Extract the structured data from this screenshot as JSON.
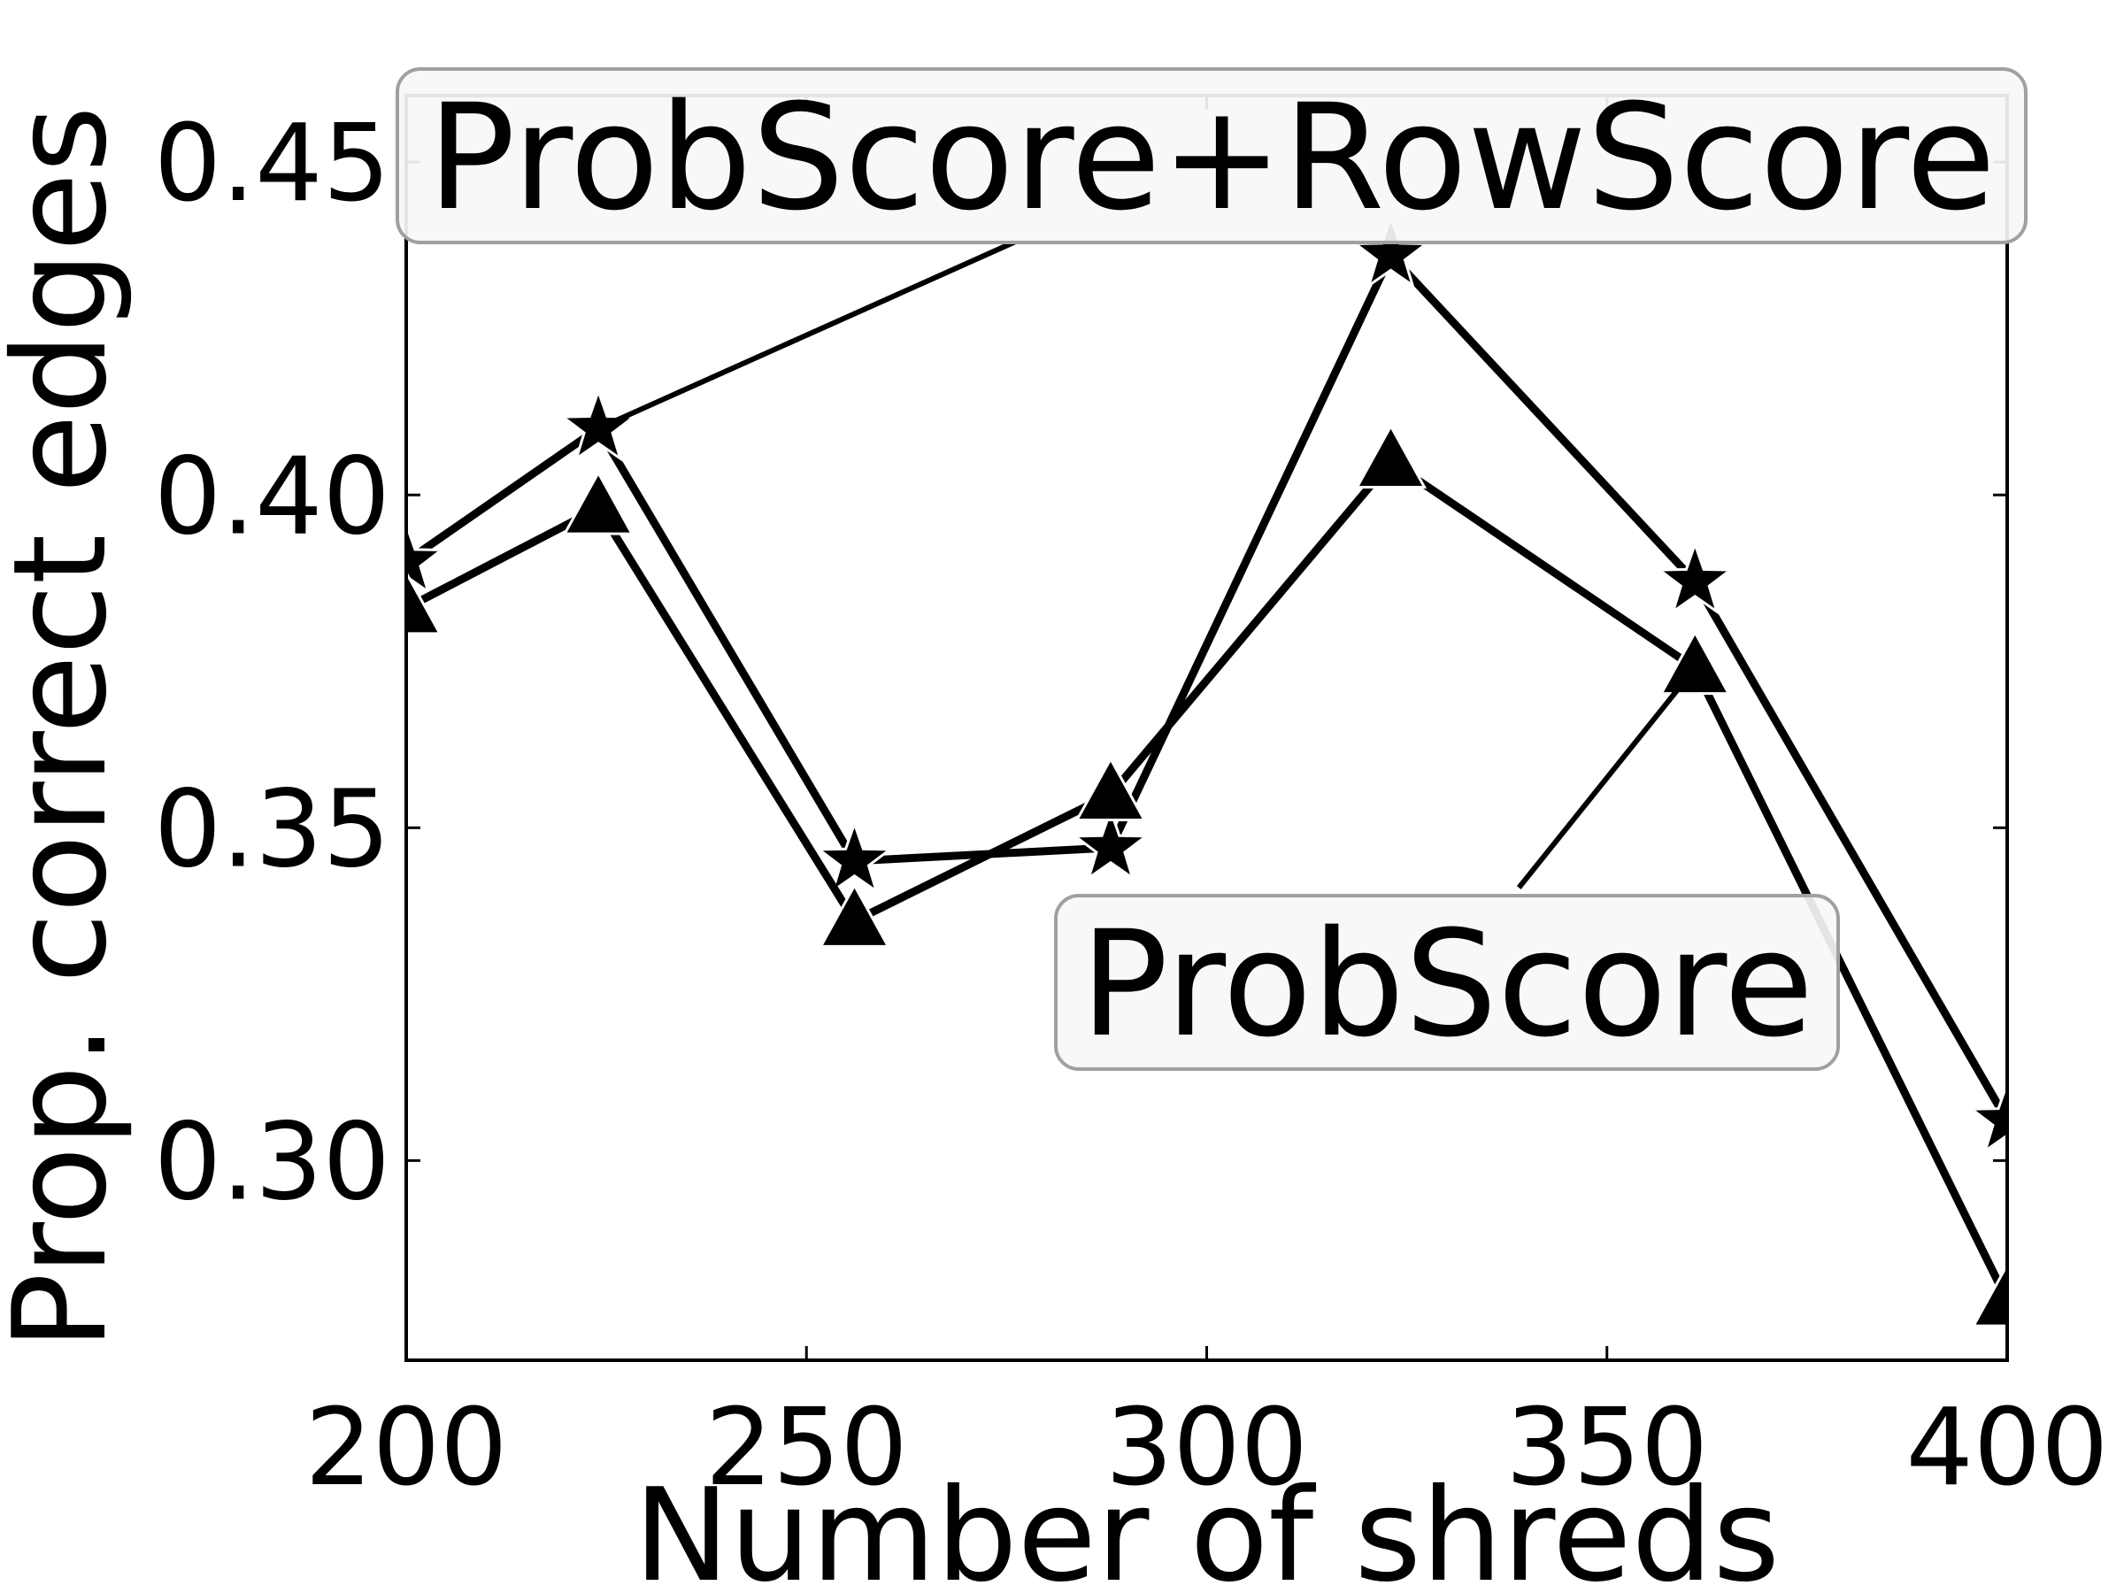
{
  "chart_data": {
    "type": "line",
    "title": "",
    "xlabel": "Number of shreds",
    "ylabel": "Prop. correct edges",
    "xlim": [
      200,
      400
    ],
    "ylim": [
      0.27,
      0.46
    ],
    "xticks": [
      200,
      250,
      300,
      350,
      400
    ],
    "xtick_labels": [
      "200",
      "250",
      "300",
      "350",
      "400"
    ],
    "yticks": [
      0.3,
      0.35,
      0.4,
      0.45
    ],
    "ytick_labels": [
      "0.30",
      "0.35",
      "0.40",
      "0.45"
    ],
    "grid": false,
    "series": [
      {
        "name": "ProbScore+RowScore",
        "marker": "star",
        "color": "#000000",
        "x": [
          200,
          224,
          256,
          288,
          323,
          361,
          400
        ],
        "y": [
          0.39,
          0.41,
          0.345,
          0.347,
          0.436,
          0.387,
          0.306
        ]
      },
      {
        "name": "ProbScore",
        "marker": "triangle",
        "color": "#000000",
        "x": [
          200,
          224,
          256,
          288,
          323,
          361,
          400
        ],
        "y": [
          0.383,
          0.398,
          0.336,
          0.355,
          0.405,
          0.374,
          0.279
        ]
      }
    ],
    "annotations": [
      {
        "text": "ProbScore+RowScore",
        "series": "ProbScore+RowScore",
        "arrow_tail": [
          276,
          0.438
        ],
        "arrow_head": [
          224,
          0.41
        ]
      },
      {
        "text": "ProbScore",
        "series": "ProbScore",
        "arrow_tail": [
          339,
          0.341
        ],
        "arrow_head": [
          361,
          0.374
        ]
      }
    ]
  }
}
